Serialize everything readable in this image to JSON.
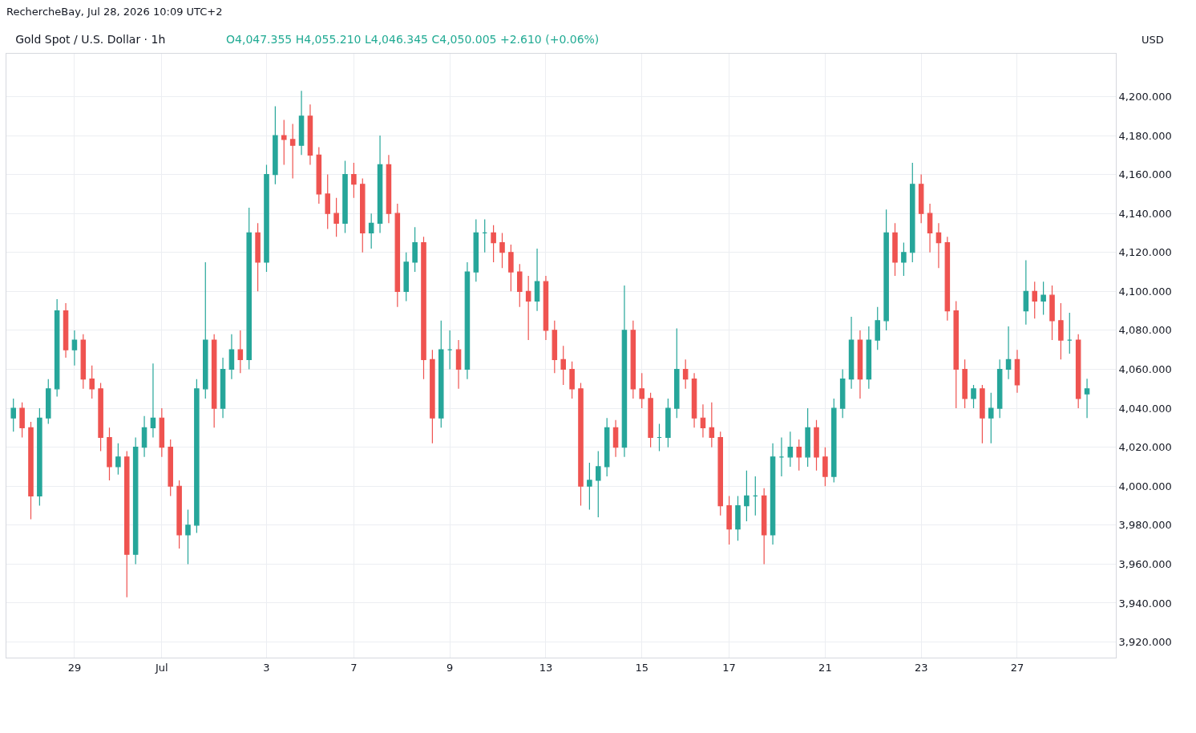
{
  "chart_data": {
    "type": "candlestick",
    "title": "Gold Spot / U.S. Dollar · 1h",
    "subtitle": "O4,047.355 H4,055.210 L4,046.345 C4,050.005 +2.610 (+0.06%)",
    "ylabel": "USD",
    "annotations": [
      "RechercheBay, Jul 28, 2026 10:09 UTC+2"
    ],
    "categories": [
      null,
      null,
      null,
      null,
      null,
      null,
      null,
      "29",
      null,
      null,
      null,
      null,
      null,
      null,
      null,
      null,
      null,
      "Jul",
      null,
      null,
      null,
      null,
      null,
      null,
      null,
      null,
      null,
      null,
      null,
      "3",
      null,
      null,
      null,
      null,
      null,
      null,
      null,
      null,
      null,
      "7",
      null,
      null,
      null,
      null,
      null,
      null,
      null,
      null,
      null,
      null,
      "9",
      null,
      null,
      null,
      null,
      null,
      null,
      null,
      null,
      null,
      null,
      "13",
      null,
      null,
      null,
      null,
      null,
      null,
      null,
      null,
      null,
      null,
      "15",
      null,
      null,
      null,
      null,
      null,
      null,
      null,
      null,
      null,
      "17",
      null,
      null,
      null,
      null,
      null,
      null,
      null,
      null,
      null,
      null,
      "21",
      null,
      null,
      null,
      null,
      null,
      null,
      null,
      null,
      null,
      null,
      "23",
      null,
      null,
      null,
      null,
      null,
      null,
      null,
      null,
      null,
      null,
      "27",
      null,
      null,
      null,
      null,
      null,
      null,
      null,
      null
    ],
    "ohlc": [
      [
        4035,
        4045,
        4028,
        4040
      ],
      [
        4040,
        4043,
        4025,
        4030
      ],
      [
        4030,
        4033,
        3983,
        3995
      ],
      [
        3995,
        4040,
        3990,
        4035
      ],
      [
        4035,
        4055,
        4032,
        4050
      ],
      [
        4050,
        4096,
        4046,
        4090
      ],
      [
        4090,
        4094,
        4066,
        4070
      ],
      [
        4070,
        4080,
        4062,
        4075
      ],
      [
        4075,
        4078,
        4050,
        4055
      ],
      [
        4055,
        4062,
        4045,
        4050
      ],
      [
        4050,
        4053,
        4018,
        4025
      ],
      [
        4025,
        4030,
        4003,
        4010
      ],
      [
        4010,
        4022,
        4006,
        4015
      ],
      [
        4015,
        4018,
        3943,
        3965
      ],
      [
        3965,
        4025,
        3960,
        4020
      ],
      [
        4020,
        4036,
        4015,
        4030
      ],
      [
        4030,
        4063,
        4025,
        4035
      ],
      [
        4035,
        4040,
        4015,
        4020
      ],
      [
        4020,
        4024,
        3995,
        4000
      ],
      [
        4000,
        4003,
        3968,
        3975
      ],
      [
        3975,
        3988,
        3960,
        3980
      ],
      [
        3980,
        4055,
        3976,
        4050
      ],
      [
        4050,
        4115,
        4045,
        4075
      ],
      [
        4075,
        4078,
        4030,
        4040
      ],
      [
        4040,
        4066,
        4035,
        4060
      ],
      [
        4060,
        4078,
        4055,
        4070
      ],
      [
        4070,
        4080,
        4058,
        4065
      ],
      [
        4065,
        4143,
        4060,
        4130
      ],
      [
        4130,
        4135,
        4100,
        4115
      ],
      [
        4115,
        4165,
        4110,
        4160
      ],
      [
        4160,
        4195,
        4155,
        4180
      ],
      [
        4180,
        4188,
        4165,
        4178
      ],
      [
        4178,
        4186,
        4158,
        4175
      ],
      [
        4175,
        4203,
        4170,
        4190
      ],
      [
        4190,
        4196,
        4165,
        4170
      ],
      [
        4170,
        4174,
        4145,
        4150
      ],
      [
        4150,
        4160,
        4132,
        4140
      ],
      [
        4140,
        4148,
        4128,
        4135
      ],
      [
        4135,
        4167,
        4130,
        4160
      ],
      [
        4160,
        4166,
        4148,
        4155
      ],
      [
        4155,
        4158,
        4120,
        4130
      ],
      [
        4130,
        4140,
        4122,
        4135
      ],
      [
        4135,
        4180,
        4130,
        4165
      ],
      [
        4165,
        4170,
        4135,
        4140
      ],
      [
        4140,
        4145,
        4092,
        4100
      ],
      [
        4100,
        4120,
        4095,
        4115
      ],
      [
        4115,
        4133,
        4110,
        4125
      ],
      [
        4125,
        4128,
        4055,
        4065
      ],
      [
        4065,
        4070,
        4022,
        4035
      ],
      [
        4035,
        4085,
        4030,
        4070
      ],
      [
        4070,
        4080,
        4060,
        4070
      ],
      [
        4070,
        4075,
        4050,
        4060
      ],
      [
        4060,
        4115,
        4055,
        4110
      ],
      [
        4110,
        4137,
        4105,
        4130
      ],
      [
        4130,
        4137,
        4120,
        4130
      ],
      [
        4130,
        4134,
        4115,
        4125
      ],
      [
        4125,
        4130,
        4112,
        4120
      ],
      [
        4120,
        4124,
        4100,
        4110
      ],
      [
        4110,
        4114,
        4092,
        4100
      ],
      [
        4100,
        4108,
        4075,
        4095
      ],
      [
        4095,
        4122,
        4090,
        4105
      ],
      [
        4105,
        4108,
        4075,
        4080
      ],
      [
        4080,
        4085,
        4058,
        4065
      ],
      [
        4065,
        4072,
        4052,
        4060
      ],
      [
        4060,
        4064,
        4045,
        4050
      ],
      [
        4050,
        4053,
        3990,
        4000
      ],
      [
        4000,
        4012,
        3988,
        4003
      ],
      [
        4003,
        4018,
        3984,
        4010
      ],
      [
        4010,
        4035,
        4005,
        4030
      ],
      [
        4030,
        4034,
        4015,
        4020
      ],
      [
        4020,
        4103,
        4015,
        4080
      ],
      [
        4080,
        4085,
        4045,
        4050
      ],
      [
        4050,
        4058,
        4040,
        4045
      ],
      [
        4045,
        4048,
        4020,
        4025
      ],
      [
        4025,
        4032,
        4018,
        4025
      ],
      [
        4025,
        4045,
        4020,
        4040
      ],
      [
        4040,
        4081,
        4035,
        4060
      ],
      [
        4060,
        4065,
        4050,
        4055
      ],
      [
        4055,
        4058,
        4030,
        4035
      ],
      [
        4035,
        4042,
        4025,
        4030
      ],
      [
        4030,
        4043,
        4020,
        4025
      ],
      [
        4025,
        4028,
        3985,
        3990
      ],
      [
        3990,
        3995,
        3970,
        3978
      ],
      [
        3978,
        3995,
        3972,
        3990
      ],
      [
        3990,
        4008,
        3982,
        3995
      ],
      [
        3995,
        4005,
        3985,
        3995
      ],
      [
        3995,
        3999,
        3960,
        3975
      ],
      [
        3975,
        4022,
        3970,
        4015
      ],
      [
        4015,
        4025,
        4005,
        4015
      ],
      [
        4015,
        4028,
        4010,
        4020
      ],
      [
        4020,
        4024,
        4008,
        4015
      ],
      [
        4015,
        4040,
        4010,
        4030
      ],
      [
        4030,
        4034,
        4008,
        4015
      ],
      [
        4015,
        4020,
        4000,
        4005
      ],
      [
        4005,
        4045,
        4002,
        4040
      ],
      [
        4040,
        4060,
        4035,
        4055
      ],
      [
        4055,
        4087,
        4050,
        4075
      ],
      [
        4075,
        4080,
        4045,
        4055
      ],
      [
        4055,
        4082,
        4050,
        4075
      ],
      [
        4075,
        4092,
        4070,
        4085
      ],
      [
        4085,
        4142,
        4080,
        4130
      ],
      [
        4130,
        4135,
        4108,
        4115
      ],
      [
        4115,
        4125,
        4108,
        4120
      ],
      [
        4120,
        4166,
        4115,
        4155
      ],
      [
        4155,
        4160,
        4135,
        4140
      ],
      [
        4140,
        4145,
        4120,
        4130
      ],
      [
        4130,
        4135,
        4112,
        4125
      ],
      [
        4125,
        4128,
        4085,
        4090
      ],
      [
        4090,
        4095,
        4040,
        4060
      ],
      [
        4060,
        4065,
        4040,
        4045
      ],
      [
        4045,
        4052,
        4040,
        4050
      ],
      [
        4050,
        4052,
        4022,
        4035
      ],
      [
        4035,
        4048,
        4022,
        4040
      ],
      [
        4040,
        4065,
        4035,
        4060
      ],
      [
        4060,
        4082,
        4055,
        4065
      ],
      [
        4065,
        4070,
        4048,
        4052
      ],
      [
        4090,
        4116,
        4083,
        4100
      ],
      [
        4100,
        4105,
        4086,
        4095
      ],
      [
        4095,
        4105,
        4088,
        4098
      ],
      [
        4098,
        4103,
        4075,
        4085
      ],
      [
        4085,
        4094,
        4065,
        4075
      ],
      [
        4075,
        4089,
        4068,
        4075
      ],
      [
        4075,
        4078,
        4040,
        4045
      ],
      [
        4047.355,
        4055.21,
        4035,
        4050.005
      ]
    ],
    "colors": [
      "#26a69a",
      "#ef5350",
      "#ef5350",
      "#26a69a",
      "#26a69a",
      "#26a69a",
      "#ef5350",
      "#26a69a",
      "#ef5350",
      "#ef5350",
      "#ef5350",
      "#ef5350",
      "#26a69a",
      "#ef5350",
      "#26a69a",
      "#26a69a",
      "#26a69a",
      "#ef5350",
      "#ef5350",
      "#ef5350",
      "#26a69a",
      "#26a69a",
      "#26a69a",
      "#ef5350",
      "#26a69a",
      "#26a69a",
      "#ef5350",
      "#26a69a",
      "#ef5350",
      "#26a69a",
      "#26a69a",
      "#ef5350",
      "#ef5350",
      "#26a69a",
      "#ef5350",
      "#ef5350",
      "#ef5350",
      "#ef5350",
      "#26a69a",
      "#ef5350",
      "#ef5350",
      "#26a69a",
      "#26a69a",
      "#ef5350",
      "#ef5350",
      "#26a69a",
      "#26a69a",
      "#ef5350",
      "#ef5350",
      "#26a69a",
      "#26a69a",
      "#ef5350",
      "#26a69a",
      "#26a69a",
      "#26a69a",
      "#ef5350",
      "#ef5350",
      "#ef5350",
      "#ef5350",
      "#ef5350",
      "#26a69a",
      "#ef5350",
      "#ef5350",
      "#ef5350",
      "#ef5350",
      "#ef5350",
      "#26a69a",
      "#26a69a",
      "#26a69a",
      "#ef5350",
      "#26a69a",
      "#ef5350",
      "#ef5350",
      "#ef5350",
      "#26a69a",
      "#26a69a",
      "#26a69a",
      "#ef5350",
      "#ef5350",
      "#ef5350",
      "#ef5350",
      "#ef5350",
      "#ef5350",
      "#26a69a",
      "#26a69a",
      "#26a69a",
      "#ef5350",
      "#26a69a",
      "#26a69a",
      "#26a69a",
      "#ef5350",
      "#26a69a",
      "#ef5350",
      "#ef5350",
      "#26a69a",
      "#26a69a",
      "#26a69a",
      "#ef5350",
      "#26a69a",
      "#26a69a",
      "#26a69a",
      "#ef5350",
      "#26a69a",
      "#26a69a",
      "#ef5350",
      "#ef5350",
      "#ef5350",
      "#ef5350",
      "#ef5350",
      "#ef5350",
      "#26a69a",
      "#ef5350",
      "#26a69a",
      "#26a69a",
      "#26a69a",
      "#ef5350",
      "#26a69a",
      "#ef5350",
      "#26a69a",
      "#ef5350",
      "#ef5350",
      "#26a69a",
      "#ef5350",
      "#26a69a"
    ],
    "ylim": [
      3912,
      4222
    ],
    "yticks": [
      {
        "value": 3920,
        "label": "3,920.000"
      },
      {
        "value": 3940,
        "label": "3,940.000"
      },
      {
        "value": 3960,
        "label": "3,960.000"
      },
      {
        "value": 3980,
        "label": "3,980.000"
      },
      {
        "value": 4000,
        "label": "4,000.000"
      },
      {
        "value": 4020,
        "label": "4,020.000"
      },
      {
        "value": 4040,
        "label": "4,040.000"
      },
      {
        "value": 4060,
        "label": "4,060.000"
      },
      {
        "value": 4080,
        "label": "4,080.000"
      },
      {
        "value": 4100,
        "label": "4,100.000"
      },
      {
        "value": 4120,
        "label": "4,120.000"
      },
      {
        "value": 4140,
        "label": "4,140.000"
      },
      {
        "value": 4160,
        "label": "4,160.000"
      },
      {
        "value": 4180,
        "label": "4,180.000"
      },
      {
        "value": 4200,
        "label": "4,200.000"
      }
    ],
    "grid": true
  }
}
